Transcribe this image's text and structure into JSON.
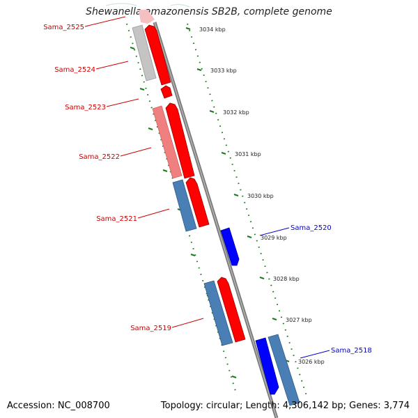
{
  "title": "Shewanella amazonensis SB2B, complete genome",
  "footer": {
    "accession": "Accession: NC_008700",
    "summary": "Topology: circular; Length: 4,306,142 bp; Genes: 3,774"
  },
  "kbp_labels": [
    "3034 kbp",
    "3033 kbp",
    "3032 kbp",
    "3031 kbp",
    "3030 kbp",
    "3029 kbp",
    "3028 kbp",
    "3027 kbp",
    "3026 kbp"
  ],
  "genes_left": [
    "Sama_2525",
    "Sama_2524",
    "Sama_2523",
    "Sama_2522",
    "Sama_2521",
    "Sama_2519"
  ],
  "genes_right": [
    "Sama_2520",
    "Sama_2518"
  ],
  "colors": {
    "red": "#ff0000",
    "pink": "#f08080",
    "gray": "#bdbdbd",
    "steel_blue": "#4a7fb5",
    "blue": "#0000ff",
    "dark_label_red": "#cc0000",
    "dark_label_blue": "#0000cc",
    "backbone": "#7a7a7a",
    "ruler": "#1a7a1a"
  }
}
